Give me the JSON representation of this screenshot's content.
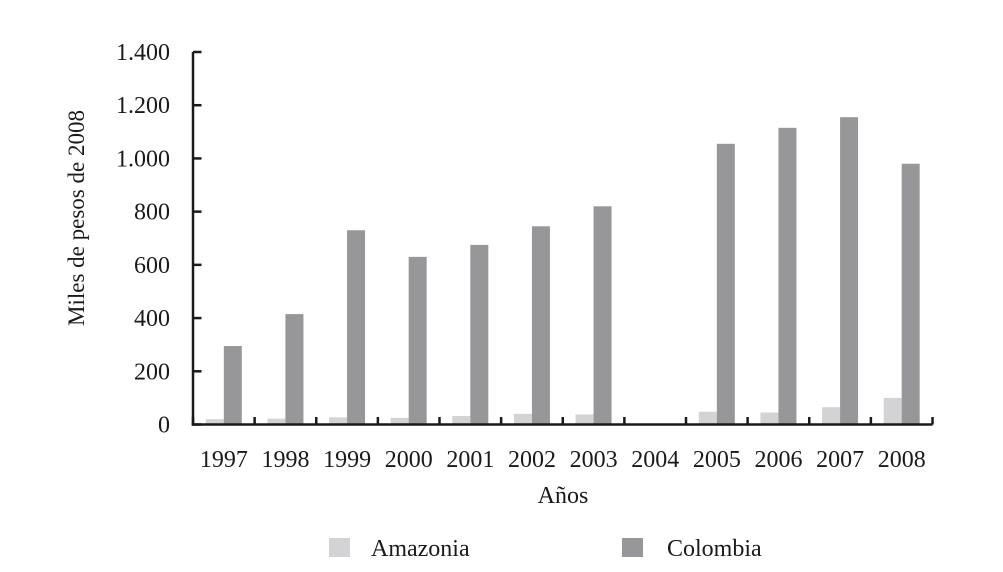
{
  "figure": {
    "background": "#ffffff",
    "text_color": "#1a1a1a",
    "axis_color": "#1a1a1a"
  },
  "chart_data": {
    "type": "bar",
    "title": "",
    "xlabel": "Años",
    "ylabel": "Miles de pesos de 2008",
    "categories": [
      "1997",
      "1998",
      "1999",
      "2000",
      "2001",
      "2002",
      "2003",
      "2004",
      "2005",
      "2006",
      "2007",
      "2008"
    ],
    "series": [
      {
        "name": "Amazonia",
        "color": "#d3d3d5",
        "values": [
          20,
          22,
          27,
          25,
          32,
          40,
          38,
          0,
          48,
          45,
          65,
          100
        ]
      },
      {
        "name": "Colombia",
        "color": "#97979a",
        "values": [
          295,
          415,
          730,
          630,
          675,
          745,
          820,
          0,
          1055,
          1115,
          1155,
          980
        ]
      }
    ],
    "ylim": [
      0,
      1400
    ],
    "ytick_step": 200,
    "ytick_labels": [
      "0",
      "200",
      "400",
      "600",
      "800",
      "1.000",
      "1.200",
      "1.400"
    ],
    "grid": false,
    "legend_position": "bottom",
    "notes": "No bars shown for 2004"
  }
}
